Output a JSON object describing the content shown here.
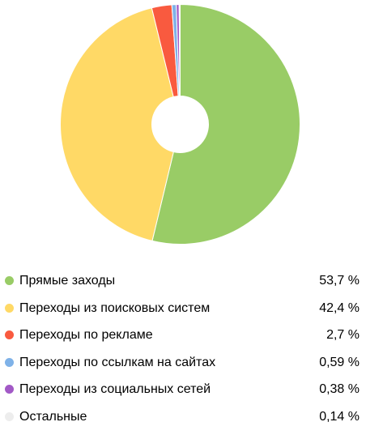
{
  "chart_data": {
    "type": "pie",
    "donut": true,
    "legend_position": "bottom",
    "series": [
      {
        "name": "Прямые заходы",
        "value": 53.7,
        "label": "53,7 %",
        "color": "#99cc66"
      },
      {
        "name": "Переходы из поисковых систем",
        "value": 42.4,
        "label": "42,4 %",
        "color": "#ffd966"
      },
      {
        "name": "Переходы по рекламе",
        "value": 2.7,
        "label": "2,7 %",
        "color": "#f95a3f"
      },
      {
        "name": "Переходы по ссылкам на сайтах",
        "value": 0.59,
        "label": "0,59 %",
        "color": "#7fb2e8"
      },
      {
        "name": "Переходы из социальных сетей",
        "value": 0.38,
        "label": "0,38 %",
        "color": "#a259c6"
      },
      {
        "name": "Остальные",
        "value": 0.14,
        "label": "0,14 %",
        "color": "#ededed"
      }
    ]
  }
}
